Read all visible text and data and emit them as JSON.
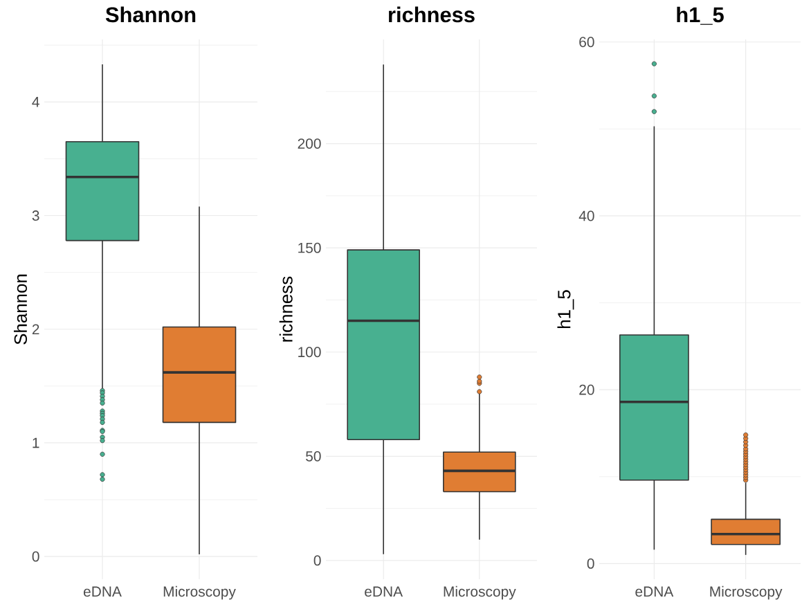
{
  "chart_data": [
    {
      "type": "box",
      "title": "Shannon",
      "ylabel": "Shannon",
      "categories": [
        "eDNA",
        "Microscopy"
      ],
      "colors": [
        "#48b090",
        "#e07d33"
      ],
      "boxes": [
        {
          "low": 1.48,
          "q1": 2.78,
          "median": 3.34,
          "q3": 3.65,
          "high": 4.33,
          "outliers": [
            1.46,
            1.44,
            1.41,
            1.38,
            1.35,
            1.28,
            1.26,
            1.24,
            1.21,
            1.18,
            1.11,
            1.1,
            1.05,
            1.02,
            0.9,
            0.72,
            0.68
          ]
        },
        {
          "low": 0.02,
          "q1": 1.18,
          "median": 1.62,
          "q3": 2.02,
          "high": 3.08
        }
      ],
      "ylim": [
        -0.2,
        4.55
      ],
      "yticks": [
        0,
        {
          "value": 0.5,
          "label": null
        },
        1,
        {
          "value": 1.5,
          "label": null
        },
        2,
        {
          "value": 2.5,
          "label": null
        },
        3,
        {
          "value": 3.5,
          "label": null
        },
        4,
        {
          "value": 4.5,
          "label": null
        }
      ],
      "grid": true
    },
    {
      "type": "box",
      "title": "richness",
      "ylabel": "richness",
      "categories": [
        "eDNA",
        "Microscopy"
      ],
      "colors": [
        "#48b090",
        "#e07d33"
      ],
      "boxes": [
        {
          "low": 3,
          "q1": 58,
          "median": 115,
          "q3": 149,
          "high": 238
        },
        {
          "low": 10,
          "q1": 33,
          "median": 43,
          "q3": 52,
          "high": 80,
          "outliers": [
            81,
            85,
            86,
            88
          ]
        }
      ],
      "ylim": [
        -9,
        250
      ],
      "yticks": [
        0,
        {
          "value": 25,
          "label": null
        },
        50,
        {
          "value": 75,
          "label": null
        },
        100,
        {
          "value": 125,
          "label": null
        },
        150,
        {
          "value": 175,
          "label": null
        },
        200,
        {
          "value": 225,
          "label": null
        }
      ],
      "grid": true
    },
    {
      "type": "box",
      "title": "h1_5",
      "ylabel": "h1_5",
      "categories": [
        "eDNA",
        "Microscopy"
      ],
      "colors": [
        "#48b090",
        "#e07d33"
      ],
      "boxes": [
        {
          "low": 1.6,
          "q1": 9.6,
          "median": 18.6,
          "q3": 26.3,
          "high": 50.3,
          "outliers": [
            52,
            53.8,
            57.5
          ]
        },
        {
          "low": 1,
          "q1": 2.2,
          "median": 3.4,
          "q3": 5.1,
          "high": 9.3,
          "outliers": [
            9.6,
            9.9,
            10.2,
            10.5,
            10.8,
            11.1,
            11.4,
            11.7,
            12,
            12.3,
            12.6,
            12.9,
            13.2,
            13.6,
            14,
            14.4,
            14.8
          ]
        }
      ],
      "ylim": [
        -1.8,
        60.3
      ],
      "yticks": [
        0,
        {
          "value": 10,
          "label": null
        },
        20,
        {
          "value": 30,
          "label": null
        },
        40,
        {
          "value": 50,
          "label": null
        },
        60
      ],
      "grid": true
    }
  ]
}
